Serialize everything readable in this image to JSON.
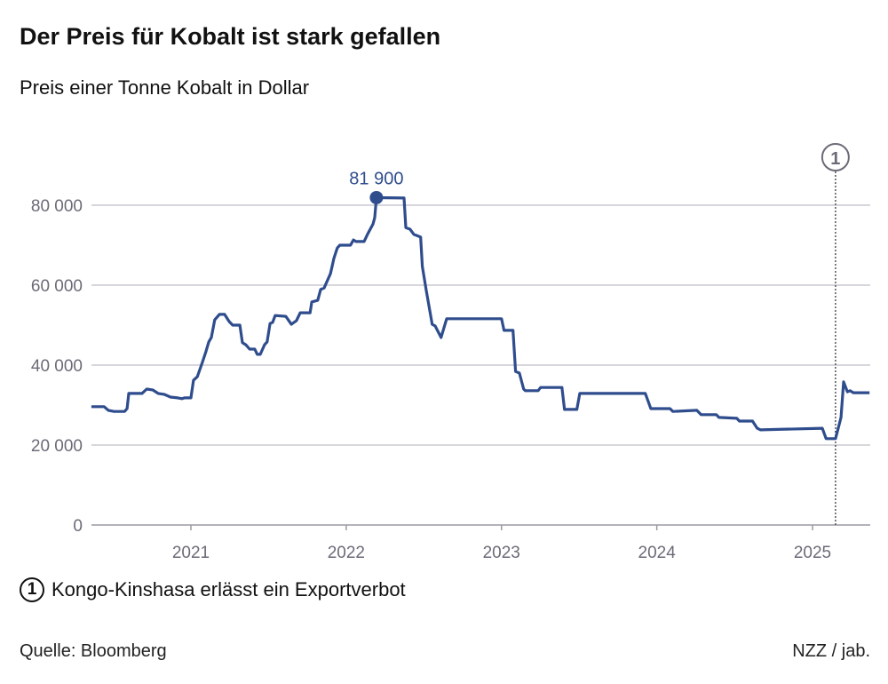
{
  "chart_data": {
    "type": "line",
    "title": "Der Preis für Kobalt ist stark gefallen",
    "subtitle": "Preis einer Tonne Kobalt in Dollar",
    "xlabel": "",
    "ylabel": "",
    "ylim": [
      0,
      90000
    ],
    "xlim": [
      "2020-05-12",
      "2025-05-15"
    ],
    "grid": true,
    "y_ticks": [
      0,
      20000,
      40000,
      60000,
      80000
    ],
    "y_tick_labels": [
      "0",
      "20 000",
      "40 000",
      "60 000",
      "80 000"
    ],
    "x_ticks": [
      "2021-01-01",
      "2022-01-01",
      "2023-01-01",
      "2024-01-01",
      "2025-01-01"
    ],
    "x_tick_labels": [
      "2021",
      "2022",
      "2023",
      "2024",
      "2025"
    ],
    "line_color": "#2f4d8d",
    "peak": {
      "date": "2022-03-13",
      "value": 81900,
      "label": "81 900"
    },
    "annotation": {
      "date": "2025-02-24",
      "marker": "1",
      "text": "Kongo-Kinshasa erlässt ein Exportverbot"
    },
    "points": [
      [
        "2020-05-12",
        29600
      ],
      [
        "2020-06-11",
        29600
      ],
      [
        "2020-06-21",
        28700
      ],
      [
        "2020-07-04",
        28400
      ],
      [
        "2020-07-29",
        28400
      ],
      [
        "2020-08-04",
        29100
      ],
      [
        "2020-08-08",
        32900
      ],
      [
        "2020-09-08",
        32900
      ],
      [
        "2020-09-19",
        34000
      ],
      [
        "2020-10-03",
        33800
      ],
      [
        "2020-10-16",
        32900
      ],
      [
        "2020-10-30",
        32700
      ],
      [
        "2020-11-14",
        32000
      ],
      [
        "2020-12-01",
        31800
      ],
      [
        "2020-12-11",
        31600
      ],
      [
        "2020-12-17",
        31800
      ],
      [
        "2021-01-01",
        31800
      ],
      [
        "2021-01-07",
        36200
      ],
      [
        "2021-01-16",
        37100
      ],
      [
        "2021-01-28",
        40700
      ],
      [
        "2021-02-05",
        43300
      ],
      [
        "2021-02-12",
        45800
      ],
      [
        "2021-02-18",
        46900
      ],
      [
        "2021-02-26",
        51300
      ],
      [
        "2021-03-09",
        52700
      ],
      [
        "2021-03-21",
        52700
      ],
      [
        "2021-04-01",
        50900
      ],
      [
        "2021-04-09",
        50000
      ],
      [
        "2021-04-26",
        50000
      ],
      [
        "2021-05-02",
        45600
      ],
      [
        "2021-05-10",
        45100
      ],
      [
        "2021-05-19",
        44000
      ],
      [
        "2021-05-31",
        44000
      ],
      [
        "2021-06-06",
        42700
      ],
      [
        "2021-06-13",
        42700
      ],
      [
        "2021-06-23",
        45100
      ],
      [
        "2021-06-29",
        45800
      ],
      [
        "2021-07-06",
        50400
      ],
      [
        "2021-07-12",
        50700
      ],
      [
        "2021-07-18",
        52400
      ],
      [
        "2021-08-12",
        52200
      ],
      [
        "2021-08-25",
        50200
      ],
      [
        "2021-09-06",
        51100
      ],
      [
        "2021-09-15",
        53100
      ],
      [
        "2021-10-08",
        53100
      ],
      [
        "2021-10-12",
        55800
      ],
      [
        "2021-10-26",
        56200
      ],
      [
        "2021-11-02",
        58900
      ],
      [
        "2021-11-10",
        59300
      ],
      [
        "2021-11-25",
        62900
      ],
      [
        "2021-12-03",
        66700
      ],
      [
        "2021-12-11",
        69300
      ],
      [
        "2021-12-17",
        70000
      ],
      [
        "2022-01-11",
        70000
      ],
      [
        "2022-01-18",
        71300
      ],
      [
        "2022-01-24",
        70900
      ],
      [
        "2022-02-12",
        70900
      ],
      [
        "2022-02-20",
        72700
      ],
      [
        "2022-03-05",
        75300
      ],
      [
        "2022-03-09",
        76900
      ],
      [
        "2022-03-13",
        81900
      ],
      [
        "2022-05-17",
        81800
      ],
      [
        "2022-05-21",
        74400
      ],
      [
        "2022-05-31",
        74000
      ],
      [
        "2022-06-09",
        72700
      ],
      [
        "2022-06-21",
        72200
      ],
      [
        "2022-06-25",
        72000
      ],
      [
        "2022-06-29",
        64700
      ],
      [
        "2022-07-08",
        58700
      ],
      [
        "2022-07-22",
        50200
      ],
      [
        "2022-07-29",
        49800
      ],
      [
        "2022-08-12",
        46900
      ],
      [
        "2022-08-25",
        51600
      ],
      [
        "2023-01-01",
        51600
      ],
      [
        "2023-01-07",
        48700
      ],
      [
        "2023-01-28",
        48700
      ],
      [
        "2023-02-03",
        38400
      ],
      [
        "2023-02-12",
        38000
      ],
      [
        "2023-02-22",
        34000
      ],
      [
        "2023-02-26",
        33600
      ],
      [
        "2023-03-28",
        33600
      ],
      [
        "2023-04-03",
        34400
      ],
      [
        "2023-05-23",
        34400
      ],
      [
        "2023-05-29",
        28900
      ],
      [
        "2023-06-27",
        28900
      ],
      [
        "2023-07-04",
        32900
      ],
      [
        "2023-12-05",
        32900
      ],
      [
        "2023-12-18",
        29100
      ],
      [
        "2024-02-01",
        29100
      ],
      [
        "2024-02-08",
        28400
      ],
      [
        "2024-04-04",
        28700
      ],
      [
        "2024-04-14",
        27600
      ],
      [
        "2024-05-20",
        27600
      ],
      [
        "2024-05-26",
        26900
      ],
      [
        "2024-07-07",
        26700
      ],
      [
        "2024-07-13",
        26000
      ],
      [
        "2024-08-13",
        26000
      ],
      [
        "2024-08-24",
        24200
      ],
      [
        "2024-09-01",
        23800
      ],
      [
        "2025-01-24",
        24200
      ],
      [
        "2025-02-02",
        21600
      ],
      [
        "2025-02-24",
        21600
      ],
      [
        "2025-03-09",
        26900
      ],
      [
        "2025-03-15",
        35800
      ],
      [
        "2025-03-24",
        33300
      ],
      [
        "2025-03-30",
        33600
      ],
      [
        "2025-04-07",
        33100
      ],
      [
        "2025-05-15",
        33100
      ]
    ]
  },
  "footer": {
    "note_marker": "1",
    "note_text": "Kongo-Kinshasa erlässt ein Exportverbot",
    "source": "Quelle: Bloomberg",
    "credit": "NZZ / jab."
  }
}
